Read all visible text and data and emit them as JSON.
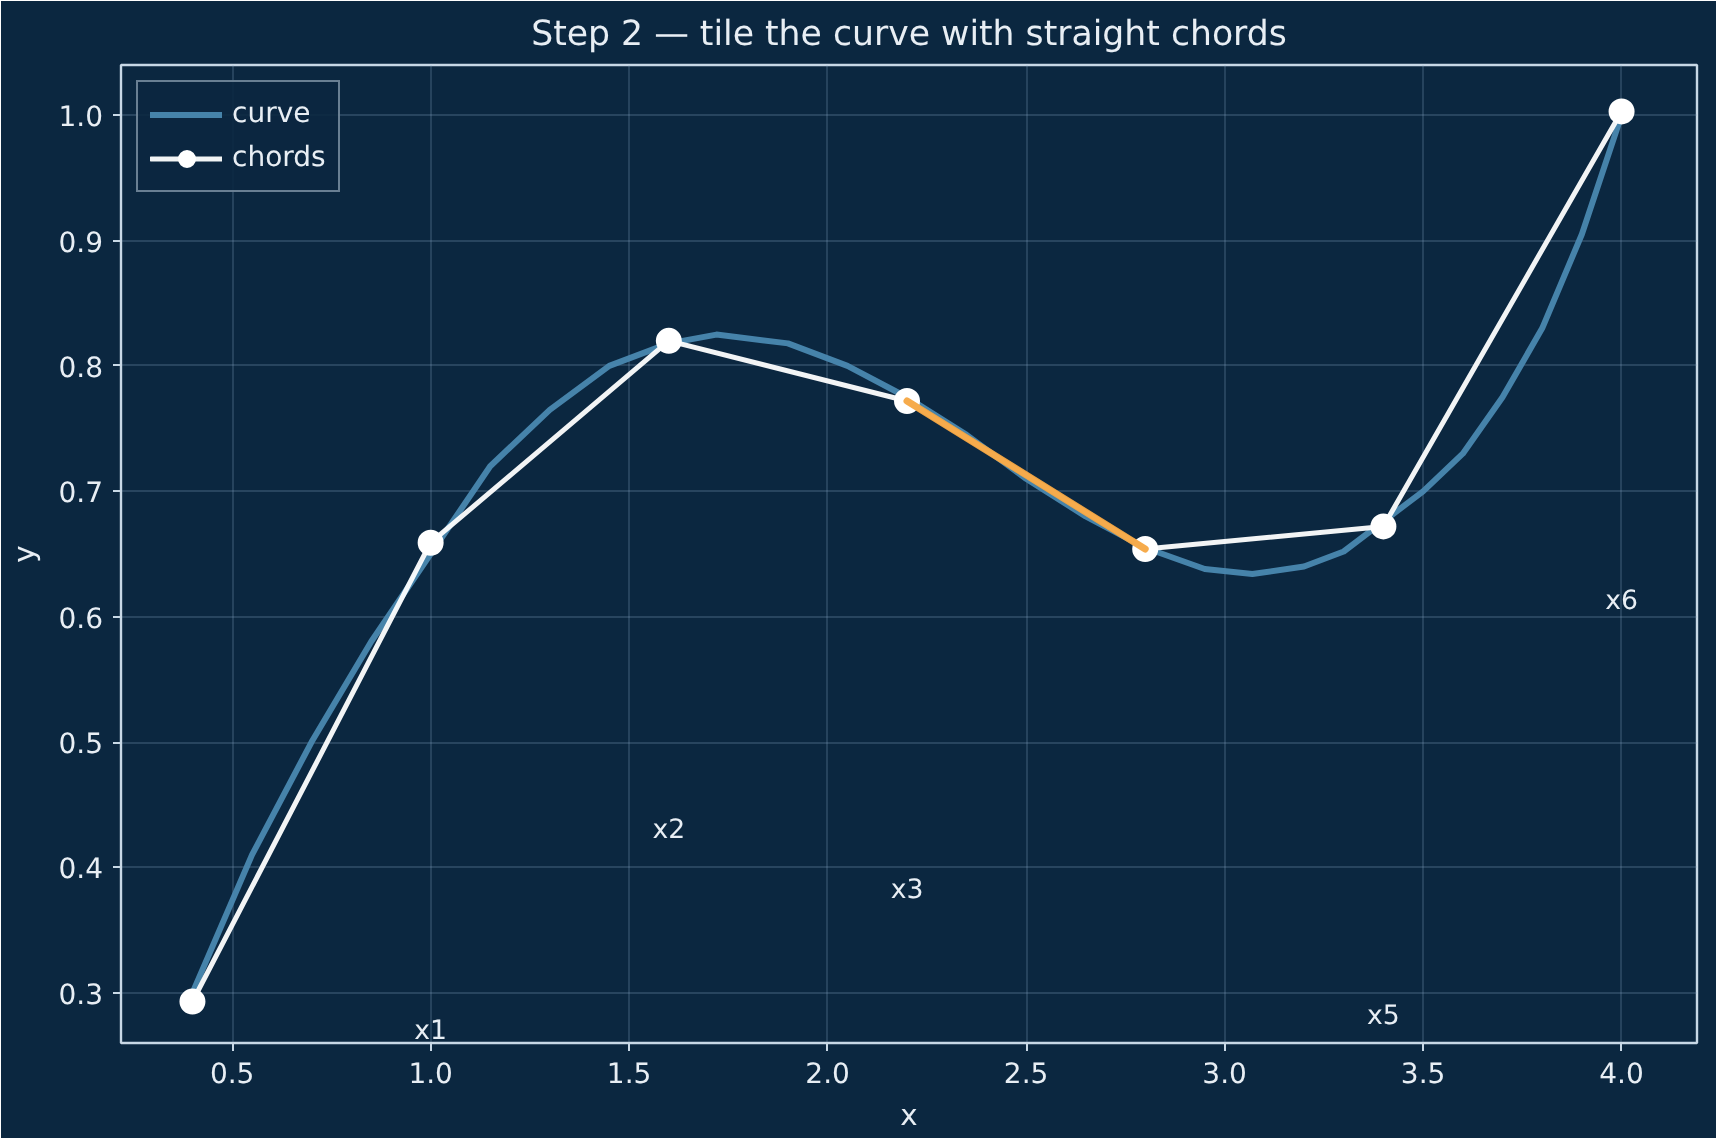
{
  "chart_data": {
    "type": "line",
    "title": "Step 2 — tile the curve with straight chords",
    "xlabel": "x",
    "ylabel": "y",
    "series": [
      {
        "name": "curve",
        "color": "#4a88b0",
        "x": [
          0.4,
          0.55,
          0.7,
          0.85,
          1.15,
          1.3,
          1.45,
          1.6,
          1.72,
          1.9,
          2.05,
          2.2,
          2.35,
          2.5,
          2.65,
          2.8,
          2.95,
          3.07,
          3.2,
          3.3,
          3.5,
          3.6,
          3.7,
          3.8,
          3.9,
          4.0
        ],
        "values": [
          0.3,
          0.41,
          0.5,
          0.58,
          0.72,
          0.765,
          0.8,
          0.818,
          0.825,
          0.818,
          0.8,
          0.775,
          0.745,
          0.71,
          0.68,
          0.655,
          0.638,
          0.634,
          0.64,
          0.652,
          0.7,
          0.73,
          0.775,
          0.83,
          0.905,
          1.0
        ],
        "marker": "none"
      },
      {
        "name": "chords",
        "color": "#ffffff",
        "x": [
          0.4,
          1.0,
          1.6,
          2.2,
          2.8,
          3.4,
          4.0
        ],
        "values": [
          0.293,
          0.659,
          0.82,
          0.772,
          0.654,
          0.672,
          1.003
        ],
        "marker": "circle"
      },
      {
        "color": "#f5a742",
        "x": [
          2.2,
          2.8
        ],
        "values": [
          0.772,
          0.654
        ],
        "marker": "none"
      }
    ],
    "annotations": [
      "x1",
      "x2",
      "x3",
      "x5",
      "x6"
    ],
    "xlim": [
      0.22,
      4.19
    ],
    "ylim": [
      0.26,
      1.04
    ],
    "xticks": [
      {
        "value": 0.5,
        "label": "0.5"
      },
      {
        "value": 1.0,
        "label": "1.0"
      },
      {
        "value": 1.5,
        "label": "1.5"
      },
      {
        "value": 2.0,
        "label": "2.0"
      },
      {
        "value": 2.5,
        "label": "2.5"
      },
      {
        "value": 3.0,
        "label": "3.0"
      },
      {
        "value": 3.5,
        "label": "3.5"
      },
      {
        "value": 4.0,
        "label": "4.0"
      }
    ],
    "yticks": [
      {
        "value": 0.3,
        "label": "0.3"
      },
      {
        "value": 0.4,
        "label": "0.4"
      },
      {
        "value": 0.5,
        "label": "0.5"
      },
      {
        "value": 0.6,
        "label": "0.6"
      },
      {
        "value": 0.7,
        "label": "0.7"
      },
      {
        "value": 0.8,
        "label": "0.8"
      },
      {
        "value": 0.9,
        "label": "0.9"
      },
      {
        "value": 1.0,
        "label": "1.0"
      }
    ],
    "grid": true,
    "legend": "top left",
    "line_style": "solid"
  }
}
